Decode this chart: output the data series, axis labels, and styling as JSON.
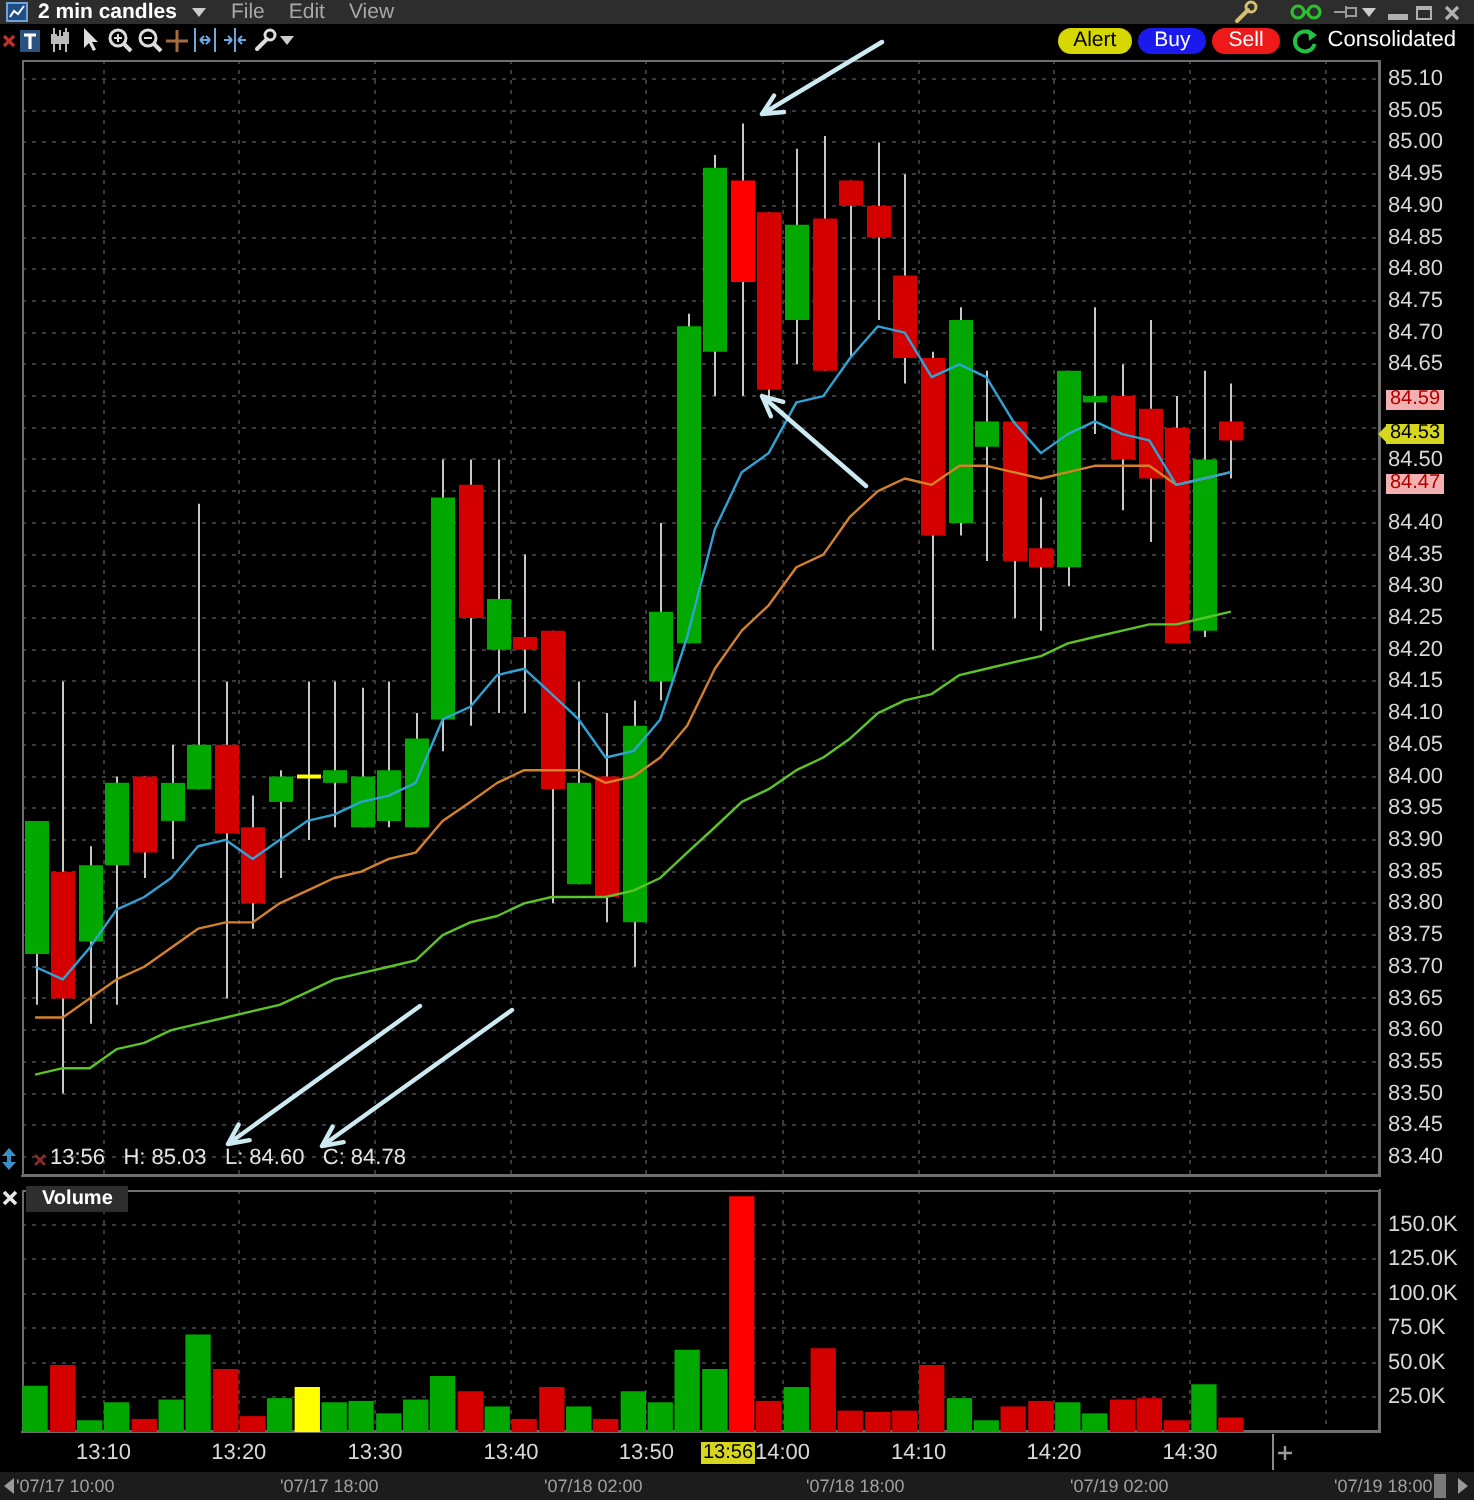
{
  "chart_data": [
    {
      "type": "candlestick",
      "title": "2 min candles",
      "x": [
        13.083,
        13.117,
        13.15,
        13.183,
        13.217,
        13.25,
        13.283,
        13.317,
        13.35,
        13.383,
        13.417,
        13.45,
        13.483,
        13.517,
        13.55,
        13.583,
        13.617,
        13.65,
        13.683,
        13.717,
        13.75,
        13.783,
        13.817,
        13.85,
        13.883,
        13.917,
        13.95,
        13.983,
        14.017,
        14.05,
        14.083,
        14.117,
        14.15,
        14.183,
        14.217,
        14.25,
        14.283,
        14.317,
        14.35,
        14.383,
        14.417,
        14.45,
        14.483,
        14.517,
        14.55
      ],
      "ohlc": [
        [
          83.72,
          83.93,
          83.64,
          83.93
        ],
        [
          83.85,
          84.15,
          83.5,
          83.65
        ],
        [
          83.74,
          83.89,
          83.61,
          83.86
        ],
        [
          83.86,
          84.0,
          83.64,
          83.99
        ],
        [
          84.0,
          84.0,
          83.84,
          83.88
        ],
        [
          83.93,
          84.05,
          83.87,
          83.99
        ],
        [
          83.98,
          84.43,
          83.98,
          84.05
        ],
        [
          84.05,
          84.15,
          83.65,
          83.91
        ],
        [
          83.92,
          83.97,
          83.76,
          83.8
        ],
        [
          83.96,
          84.01,
          83.84,
          84.0
        ],
        [
          84.0,
          84.15,
          83.9,
          84.0
        ],
        [
          83.99,
          84.15,
          83.92,
          84.01
        ],
        [
          83.92,
          84.14,
          83.92,
          84.0
        ],
        [
          83.93,
          84.15,
          83.92,
          84.01
        ],
        [
          83.92,
          84.1,
          83.92,
          84.06
        ],
        [
          84.09,
          84.5,
          84.04,
          84.44
        ],
        [
          84.46,
          84.5,
          84.08,
          84.25
        ],
        [
          84.2,
          84.5,
          84.1,
          84.28
        ],
        [
          84.22,
          84.35,
          84.1,
          84.2
        ],
        [
          84.23,
          84.23,
          83.8,
          83.98
        ],
        [
          83.83,
          84.15,
          83.83,
          83.99
        ],
        [
          84.0,
          84.1,
          83.77,
          83.81
        ],
        [
          83.77,
          84.12,
          83.7,
          84.08
        ],
        [
          84.15,
          84.4,
          84.12,
          84.26
        ],
        [
          84.21,
          84.73,
          84.21,
          84.71
        ],
        [
          84.67,
          84.98,
          84.6,
          84.96
        ],
        [
          84.94,
          85.03,
          84.6,
          84.78
        ],
        [
          84.89,
          84.89,
          84.6,
          84.61
        ],
        [
          84.72,
          84.99,
          84.65,
          84.87
        ],
        [
          84.88,
          85.01,
          84.64,
          84.64
        ],
        [
          84.94,
          84.94,
          84.66,
          84.9
        ],
        [
          84.9,
          85.0,
          84.72,
          84.85
        ],
        [
          84.79,
          84.95,
          84.62,
          84.66
        ],
        [
          84.66,
          84.67,
          84.2,
          84.38
        ],
        [
          84.4,
          84.74,
          84.38,
          84.72
        ],
        [
          84.52,
          84.64,
          84.34,
          84.56
        ],
        [
          84.56,
          84.56,
          84.25,
          84.34
        ],
        [
          84.36,
          84.44,
          84.23,
          84.33
        ],
        [
          84.33,
          84.64,
          84.3,
          84.64
        ],
        [
          84.59,
          84.74,
          84.54,
          84.6
        ],
        [
          84.6,
          84.65,
          84.42,
          84.5
        ],
        [
          84.58,
          84.72,
          84.37,
          84.47
        ],
        [
          84.55,
          84.6,
          84.21,
          84.21
        ],
        [
          84.23,
          84.64,
          84.22,
          84.5
        ],
        [
          84.56,
          84.62,
          84.47,
          84.53
        ]
      ],
      "colors": [
        "#00a800",
        "#d40000",
        "#00a800",
        "#00a800",
        "#d40000",
        "#00a800",
        "#00a800",
        "#d40000",
        "#d40000",
        "#00a800",
        "#ffff00",
        "#00a800",
        "#00a800",
        "#00a800",
        "#00a800",
        "#00a800",
        "#d40000",
        "#00a800",
        "#d40000",
        "#d40000",
        "#00a800",
        "#d40000",
        "#00a800",
        "#00a800",
        "#00a800",
        "#00a800",
        "#ff0000",
        "#d40000",
        "#00a800",
        "#d40000",
        "#d40000",
        "#d40000",
        "#d40000",
        "#d40000",
        "#00a800",
        "#00a800",
        "#d40000",
        "#d40000",
        "#00a800",
        "#00a800",
        "#d40000",
        "#d40000",
        "#d40000",
        "#00a800",
        "#d40000"
      ],
      "series": [
        {
          "type": "line",
          "color": "#2fa4d4",
          "values": [
            83.7,
            83.68,
            83.73,
            83.79,
            83.81,
            83.84,
            83.89,
            83.9,
            83.87,
            83.9,
            83.93,
            83.94,
            83.96,
            83.97,
            83.99,
            84.09,
            84.11,
            84.16,
            84.17,
            84.13,
            84.09,
            84.03,
            84.04,
            84.09,
            84.22,
            84.39,
            84.48,
            84.51,
            84.59,
            84.6,
            84.66,
            84.71,
            84.7,
            84.63,
            84.65,
            84.63,
            84.56,
            84.51,
            84.54,
            84.56,
            84.54,
            84.53,
            84.46,
            84.47,
            84.48
          ]
        },
        {
          "type": "line",
          "color": "#d5802a",
          "values": [
            83.62,
            83.62,
            83.65,
            83.68,
            83.7,
            83.73,
            83.76,
            83.77,
            83.77,
            83.8,
            83.82,
            83.84,
            83.85,
            83.87,
            83.88,
            83.93,
            83.96,
            83.99,
            84.01,
            84.01,
            84.01,
            83.99,
            84.0,
            84.03,
            84.08,
            84.17,
            84.23,
            84.27,
            84.33,
            84.35,
            84.41,
            84.45,
            84.47,
            84.46,
            84.49,
            84.49,
            84.48,
            84.47,
            84.48,
            84.49,
            84.49,
            84.49,
            84.46,
            84.47,
            84.48
          ]
        },
        {
          "type": "line",
          "color": "#5cc428",
          "values": [
            83.53,
            83.54,
            83.54,
            83.57,
            83.58,
            83.6,
            83.61,
            83.62,
            83.63,
            83.64,
            83.66,
            83.68,
            83.69,
            83.7,
            83.71,
            83.75,
            83.77,
            83.78,
            83.8,
            83.81,
            83.81,
            83.81,
            83.82,
            83.84,
            83.88,
            83.92,
            83.96,
            83.98,
            84.01,
            84.03,
            84.06,
            84.1,
            84.12,
            84.13,
            84.16,
            84.17,
            84.18,
            84.19,
            84.21,
            84.22,
            84.23,
            84.24,
            84.24,
            84.25,
            84.26
          ]
        }
      ],
      "xlim": [
        13.067,
        14.733
      ],
      "xticks": [
        13.167,
        13.333,
        13.5,
        13.667,
        13.833,
        14,
        14.167,
        14.333,
        14.5,
        14.667
      ],
      "ylim": [
        83.37,
        85.13
      ],
      "yticks": [
        {
          "value": 83.4,
          "label": "83.40"
        },
        83.45,
        {
          "value": 83.5,
          "label": "83.50"
        },
        83.55,
        {
          "value": 83.6,
          "label": "83.60"
        },
        83.65,
        {
          "value": 83.7,
          "label": "83.70"
        },
        83.75,
        {
          "value": 83.8,
          "label": "83.80"
        },
        83.85,
        {
          "value": 83.9,
          "label": "83.90"
        },
        83.95,
        {
          "value": 84,
          "label": "84.00"
        },
        84.05,
        {
          "value": 84.1,
          "label": "84.10"
        },
        84.15,
        {
          "value": 84.2,
          "label": "84.20"
        },
        84.25,
        {
          "value": 84.3,
          "label": "84.30"
        },
        84.35,
        {
          "value": 84.4,
          "label": "84.40"
        },
        {
          "value": 84.45,
          "label": null
        },
        {
          "value": 84.5,
          "label": "84.50"
        },
        {
          "value": 84.55,
          "label": null
        },
        {
          "value": 84.6,
          "label": null
        },
        84.65,
        {
          "value": 84.7,
          "label": "84.70"
        },
        84.75,
        {
          "value": 84.8,
          "label": "84.80"
        },
        84.85,
        {
          "value": 84.9,
          "label": "84.90"
        },
        84.95,
        {
          "value": 85,
          "label": "85.00"
        },
        85.05,
        {
          "value": 85.1,
          "label": "85.10"
        }
      ],
      "grid": true,
      "tick_labels": "y",
      "annotations": [
        "File",
        "Edit",
        "View",
        "Alert",
        "Buy",
        "Sell",
        "Consolidated",
        "13:56   H: 85.03   L: 84.60   C: 84.78",
        "84.59",
        "84.53",
        "84.47"
      ]
    },
    {
      "type": "bar",
      "title": "Volume",
      "x": [
        13.083,
        13.117,
        13.15,
        13.183,
        13.217,
        13.25,
        13.283,
        13.317,
        13.35,
        13.383,
        13.417,
        13.45,
        13.483,
        13.517,
        13.55,
        13.583,
        13.617,
        13.65,
        13.683,
        13.717,
        13.75,
        13.783,
        13.817,
        13.85,
        13.883,
        13.917,
        13.95,
        13.983,
        14.017,
        14.05,
        14.083,
        14.117,
        14.15,
        14.183,
        14.217,
        14.25,
        14.283,
        14.317,
        14.35,
        14.383,
        14.417,
        14.45,
        14.483,
        14.517,
        14.55
      ],
      "values": [
        33000,
        48000,
        8000,
        21000,
        9000,
        23000,
        70000,
        45000,
        11000,
        24000,
        32000,
        21000,
        22000,
        13000,
        23000,
        40000,
        29000,
        18000,
        9000,
        32000,
        18000,
        9000,
        29000,
        21000,
        59000,
        45000,
        170000,
        22000,
        32000,
        60000,
        15000,
        14000,
        15000,
        48000,
        24000,
        8000,
        18000,
        22000,
        21000,
        13000,
        23000,
        24000,
        8000,
        34000,
        10000
      ],
      "colors": [
        "#00a800",
        "#d40000",
        "#00a800",
        "#00a800",
        "#d40000",
        "#00a800",
        "#00a800",
        "#d40000",
        "#d40000",
        "#00a800",
        "#ffff00",
        "#00a800",
        "#00a800",
        "#00a800",
        "#00a800",
        "#00a800",
        "#d40000",
        "#00a800",
        "#d40000",
        "#d40000",
        "#00a800",
        "#d40000",
        "#00a800",
        "#00a800",
        "#00a800",
        "#00a800",
        "#ff0000",
        "#d40000",
        "#00a800",
        "#d40000",
        "#d40000",
        "#d40000",
        "#d40000",
        "#d40000",
        "#00a800",
        "#00a800",
        "#d40000",
        "#d40000",
        "#00a800",
        "#00a800",
        "#d40000",
        "#d40000",
        "#d40000",
        "#00a800",
        "#d40000"
      ],
      "xlim": [
        13.067,
        14.733
      ],
      "xticks": [
        {
          "value": 13.167,
          "label": "13:10"
        },
        {
          "value": 13.333,
          "label": "13:20"
        },
        {
          "value": 13.5,
          "label": "13:30"
        },
        {
          "value": 13.667,
          "label": "13:40"
        },
        {
          "value": 13.833,
          "label": "13:50"
        },
        {
          "value": 14,
          "label": "14:00"
        },
        {
          "value": 14.167,
          "label": "14:10"
        },
        {
          "value": 14.333,
          "label": "14:20"
        },
        {
          "value": 14.5,
          "label": "14:30"
        },
        {
          "value": 14.667,
          "label": null
        }
      ],
      "ylim": [
        0,
        175000
      ],
      "yticks": [
        {
          "value": 25000,
          "label": "25.0K"
        },
        {
          "value": 50000,
          "label": "50.0K"
        },
        {
          "value": 75000,
          "label": "75.0K"
        },
        {
          "value": 100000,
          "label": "100.0K"
        },
        {
          "value": 125000,
          "label": "125.0K"
        },
        {
          "value": 150000,
          "label": "150.0K"
        }
      ],
      "grid": true,
      "annotations": [
        "13:56",
        "'07/17 10:00",
        "'07/17 18:00",
        "'07/18 02:00",
        "'07/18 18:00",
        "'07/19 02:00",
        "'07/19 18:00"
      ]
    }
  ]
}
